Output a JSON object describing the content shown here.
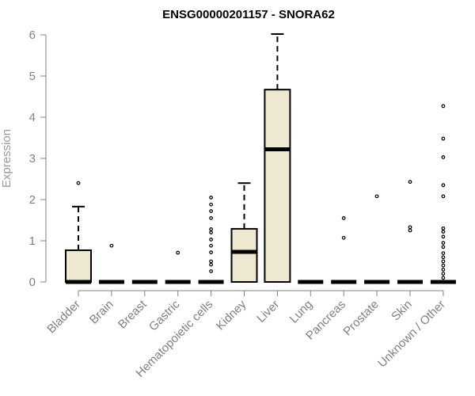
{
  "chart_data": {
    "type": "boxplot",
    "title": "ENSG00000201157 - SNORA62",
    "ylabel": "Expression",
    "xlabel": "",
    "ylim": [
      0,
      6
    ],
    "yticks": [
      0,
      1,
      2,
      3,
      4,
      5,
      6
    ],
    "grid": false,
    "legend": "none",
    "colors": {
      "box_fill": "#efe8d0",
      "box_stroke": "#000000",
      "axis": "#808080",
      "title": "#000000"
    },
    "categories": [
      "Bladder",
      "Brain",
      "Breast",
      "Gastric",
      "Hematopoietic cells",
      "Kidney",
      "Liver",
      "Lung",
      "Pancreas",
      "Prostate",
      "Skin",
      "Unknown / Other"
    ],
    "boxes": [
      {
        "q1": 0,
        "median": 0,
        "q3": 0.77,
        "whisker_low": 0,
        "whisker_high": 1.83,
        "outliers": [
          2.4
        ]
      },
      {
        "q1": 0,
        "median": 0,
        "q3": 0,
        "whisker_low": 0,
        "whisker_high": 0,
        "outliers": [
          0.88
        ]
      },
      {
        "q1": 0,
        "median": 0,
        "q3": 0,
        "whisker_low": 0,
        "whisker_high": 0,
        "outliers": []
      },
      {
        "q1": 0,
        "median": 0,
        "q3": 0,
        "whisker_low": 0,
        "whisker_high": 0,
        "outliers": [
          0.71
        ]
      },
      {
        "q1": 0,
        "median": 0,
        "q3": 0,
        "whisker_low": 0,
        "whisker_high": 0,
        "outliers": [
          0.26,
          0.42,
          0.5,
          0.72,
          0.88,
          1.03,
          1.2,
          1.28,
          1.55,
          1.72,
          1.88,
          2.05
        ]
      },
      {
        "q1": 0,
        "median": 0.73,
        "q3": 1.29,
        "whisker_low": 0,
        "whisker_high": 2.4,
        "outliers": []
      },
      {
        "q1": 0,
        "median": 3.22,
        "q3": 4.67,
        "whisker_low": 0,
        "whisker_high": 6.02,
        "outliers": []
      },
      {
        "q1": 0,
        "median": 0,
        "q3": 0,
        "whisker_low": 0,
        "whisker_high": 0,
        "outliers": []
      },
      {
        "q1": 0,
        "median": 0,
        "q3": 0,
        "whisker_low": 0,
        "whisker_high": 0,
        "outliers": [
          1.07,
          1.55
        ]
      },
      {
        "q1": 0,
        "median": 0,
        "q3": 0,
        "whisker_low": 0,
        "whisker_high": 0,
        "outliers": [
          2.08
        ]
      },
      {
        "q1": 0,
        "median": 0,
        "q3": 0,
        "whisker_low": 0,
        "whisker_high": 0,
        "outliers": [
          1.25,
          1.33,
          2.43
        ]
      },
      {
        "q1": 0,
        "median": 0,
        "q3": 0,
        "whisker_low": 0,
        "whisker_high": 0,
        "outliers": [
          0.1,
          0.2,
          0.3,
          0.4,
          0.5,
          0.6,
          0.7,
          0.85,
          0.95,
          1.1,
          1.22,
          1.3,
          2.08,
          2.35,
          3.03,
          3.48,
          4.27
        ]
      }
    ]
  }
}
